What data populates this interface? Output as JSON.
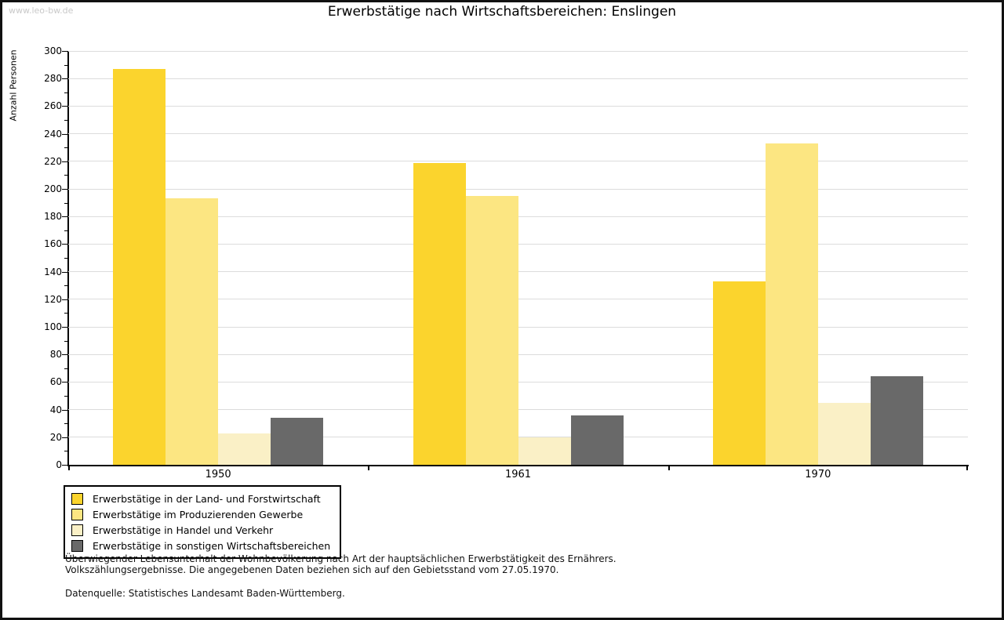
{
  "watermark": "www.leo-bw.de",
  "title": "Erwerbstätige nach Wirtschaftsbereichen: Enslingen",
  "chart_data": {
    "type": "bar",
    "title": "Erwerbstätige nach Wirtschaftsbereichen: Enslingen",
    "xlabel": "",
    "ylabel": "Anzahl Personen",
    "categories": [
      "1950",
      "1961",
      "1970"
    ],
    "series": [
      {
        "name": "Erwerbstätige in der Land- und Forstwirtschaft",
        "color": "#FBD42D",
        "values": [
          287,
          219,
          133
        ]
      },
      {
        "name": "Erwerbstätige im Produzierenden Gewerbe",
        "color": "#FCE682",
        "values": [
          193,
          195,
          233
        ]
      },
      {
        "name": "Erwerbstätige in Handel und Verkehr",
        "color": "#FAF0C6",
        "values": [
          23,
          20,
          45
        ]
      },
      {
        "name": "Erwerbstätige in sonstigen Wirtschaftsbereichen",
        "color": "#696969",
        "values": [
          34,
          36,
          64
        ]
      }
    ],
    "ylim": [
      0,
      300
    ],
    "ytick_step": 20,
    "yminor_step": 10,
    "grid": true,
    "gridline_color": "#dcdcdc",
    "legend_position": "bottom-left"
  },
  "footer": {
    "line1": "Überwiegender Lebensunterhalt der Wohnbevölkerung nach Art der hauptsächlichen Erwerbstätigkeit des Ernährers.",
    "line2": "Volkszählungsergebnisse. Die angegebenen Daten beziehen sich auf den Gebietsstand vom 27.05.1970.",
    "source": "Datenquelle: Statistisches Landesamt Baden-Württemberg."
  }
}
